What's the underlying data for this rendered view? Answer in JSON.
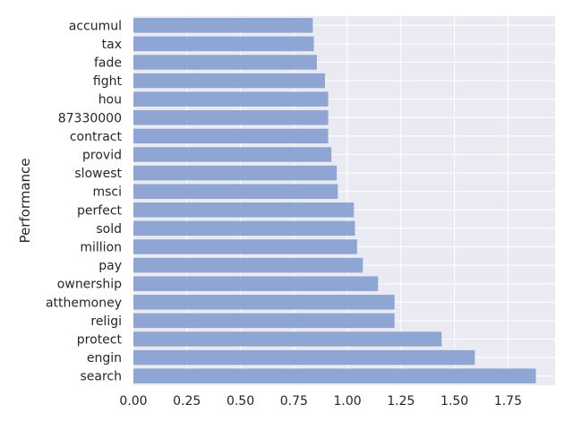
{
  "chart_data": {
    "type": "bar",
    "orientation": "horizontal",
    "title": "",
    "xlabel": "",
    "ylabel": "Performance",
    "categories": [
      "search",
      "engin",
      "protect",
      "religi",
      "atthemoney",
      "ownership",
      "pay",
      "million",
      "sold",
      "perfect",
      "msci",
      "slowest",
      "provid",
      "contract",
      "87330000",
      "hou",
      "fight",
      "fade",
      "tax",
      "accumul"
    ],
    "values": [
      1.88,
      1.595,
      1.44,
      1.22,
      1.22,
      1.143,
      1.072,
      1.045,
      1.035,
      1.03,
      0.955,
      0.95,
      0.925,
      0.91,
      0.91,
      0.91,
      0.895,
      0.857,
      0.843,
      0.838
    ],
    "xlim": [
      0,
      1.97
    ],
    "xticks": [
      "0.00",
      "0.25",
      "0.50",
      "0.75",
      "1.00",
      "1.25",
      "1.50",
      "1.75"
    ],
    "grid": true,
    "colors": {
      "bar": "#8fa6d4",
      "background": "#eaeaf2",
      "grid": "#ffffff"
    }
  }
}
